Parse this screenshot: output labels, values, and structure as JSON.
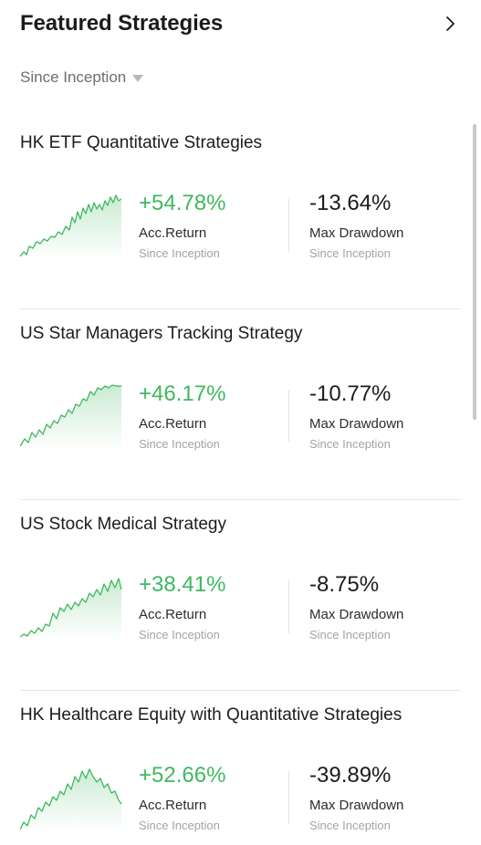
{
  "header": {
    "title": "Featured Strategies",
    "icon": "chevron-right-icon"
  },
  "filter": {
    "label": "Since Inception",
    "icon": "caret-down-icon"
  },
  "colors": {
    "positive": "#3fb85f",
    "text": "#1c1c1e",
    "muted": "#a3a3a8"
  },
  "strategies": [
    {
      "name": "HK ETF Quantitative Strategies",
      "return_value": "+54.78%",
      "return_label": "Acc.Return",
      "return_sub": "Since Inception",
      "drawdown_value": "-13.64%",
      "drawdown_label": "Max Drawdown",
      "drawdown_sub": "Since Inception"
    },
    {
      "name": "US Star Managers Tracking Strategy",
      "return_value": "+46.17%",
      "return_label": "Acc.Return",
      "return_sub": "Since Inception",
      "drawdown_value": "-10.77%",
      "drawdown_label": "Max Drawdown",
      "drawdown_sub": "Since Inception"
    },
    {
      "name": "US Stock Medical Strategy",
      "return_value": "+38.41%",
      "return_label": "Acc.Return",
      "return_sub": "Since Inception",
      "drawdown_value": "-8.75%",
      "drawdown_label": "Max Drawdown",
      "drawdown_sub": "Since Inception"
    },
    {
      "name": "HK Healthcare Equity with Quantitative Strategies",
      "return_value": "+52.66%",
      "return_label": "Acc.Return",
      "return_sub": "Since Inception",
      "drawdown_value": "-39.89%",
      "drawdown_label": "Max Drawdown",
      "drawdown_sub": "Since Inception"
    }
  ]
}
